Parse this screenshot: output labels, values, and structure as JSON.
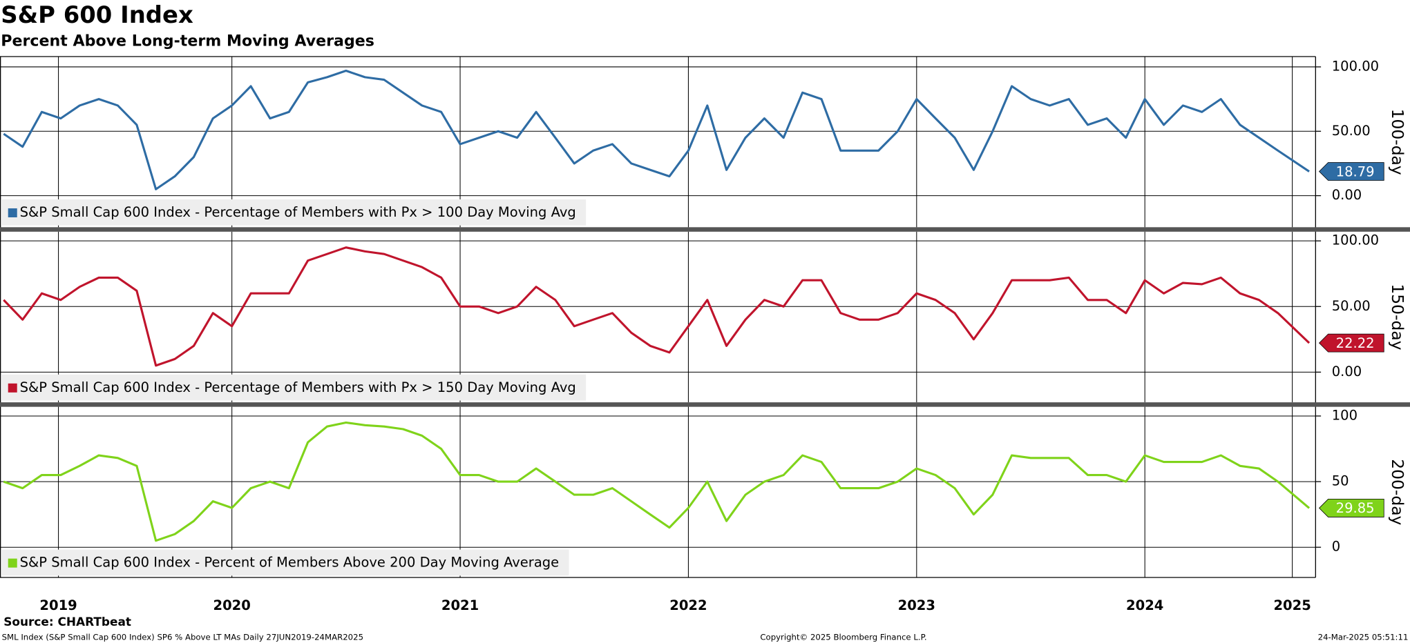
{
  "header": {
    "title": "S&P 600 Index",
    "subtitle": "Percent Above Long-term Moving Averages"
  },
  "chart_data": {
    "type": "line",
    "x": [
      2019.5,
      2019.583,
      2019.667,
      2019.75,
      2019.833,
      2019.917,
      2020,
      2020.083,
      2020.167,
      2020.25,
      2020.333,
      2020.417,
      2020.5,
      2020.583,
      2020.667,
      2020.75,
      2020.833,
      2020.917,
      2021,
      2021.083,
      2021.167,
      2021.25,
      2021.333,
      2021.417,
      2021.5,
      2021.583,
      2021.667,
      2021.75,
      2021.833,
      2021.917,
      2022,
      2022.083,
      2022.167,
      2022.25,
      2022.333,
      2022.417,
      2022.5,
      2022.583,
      2022.667,
      2022.75,
      2022.833,
      2022.917,
      2023,
      2023.083,
      2023.167,
      2023.25,
      2023.333,
      2023.417,
      2023.5,
      2023.583,
      2023.667,
      2023.75,
      2023.833,
      2023.917,
      2024,
      2024.083,
      2024.167,
      2024.25,
      2024.333,
      2024.417,
      2024.5,
      2024.583,
      2024.667,
      2024.75,
      2024.833,
      2024.917,
      2025,
      2025.083,
      2025.22
    ],
    "xlim": [
      2019.484,
      2025.248
    ],
    "xticks": [
      {
        "value": 2019.74,
        "label": "2019"
      },
      {
        "value": 2020.5,
        "label": "2020"
      },
      {
        "value": 2021.5,
        "label": "2021"
      },
      {
        "value": 2022.5,
        "label": "2022"
      },
      {
        "value": 2023.5,
        "label": "2023"
      },
      {
        "value": 2024.5,
        "label": "2024"
      },
      {
        "value": 2025.146,
        "label": "2025"
      }
    ],
    "grid": true,
    "panels": [
      {
        "ylabel": "100-day",
        "ylim": [
          -24.5,
          108
        ],
        "yticks": [
          {
            "value": 100,
            "label": "100.00"
          },
          {
            "value": 50,
            "label": "50.00"
          },
          {
            "value": 0,
            "label": "0.00"
          }
        ],
        "series": [
          {
            "name": "S&P Small Cap 600 Index - Percentage of Members with Px > 100 Day Moving Avg",
            "color": "#2e6ca4",
            "values": [
              48,
              38,
              65,
              60,
              70,
              75,
              70,
              55,
              5,
              15,
              30,
              60,
              70,
              85,
              60,
              65,
              88,
              92,
              97,
              92,
              90,
              80,
              70,
              65,
              40,
              45,
              50,
              45,
              65,
              45,
              25,
              35,
              40,
              25,
              20,
              15,
              35,
              70,
              20,
              45,
              60,
              45,
              80,
              75,
              35,
              35,
              35,
              50,
              75,
              60,
              45,
              20,
              50,
              85,
              75,
              70,
              75,
              55,
              60,
              45,
              75,
              55,
              70,
              65,
              75,
              55,
              45,
              35,
              18.79
            ]
          }
        ]
      },
      {
        "ylabel": "150-day",
        "ylim": [
          -23,
          107
        ],
        "yticks": [
          {
            "value": 100,
            "label": "100.00"
          },
          {
            "value": 50,
            "label": "50.00"
          },
          {
            "value": 0,
            "label": "0.00"
          }
        ],
        "series": [
          {
            "name": "S&P Small Cap 600 Index - Percentage of Members with Px > 150 Day Moving Avg",
            "color": "#c0142c",
            "values": [
              55,
              40,
              60,
              55,
              65,
              72,
              72,
              62,
              5,
              10,
              20,
              45,
              35,
              60,
              60,
              60,
              85,
              90,
              95,
              92,
              90,
              85,
              80,
              72,
              50,
              50,
              45,
              50,
              65,
              55,
              35,
              40,
              45,
              30,
              20,
              15,
              35,
              55,
              20,
              40,
              55,
              50,
              70,
              70,
              45,
              40,
              40,
              45,
              60,
              55,
              45,
              25,
              45,
              70,
              70,
              70,
              72,
              55,
              55,
              45,
              70,
              60,
              68,
              67,
              72,
              60,
              55,
              45,
              22.22
            ]
          }
        ]
      },
      {
        "ylabel": "200-day",
        "ylim": [
          -23,
          107
        ],
        "yticks": [
          100,
          50,
          0
        ],
        "series": [
          {
            "name": "S&P Small Cap 600 Index - Percent of Members Above 200 Day Moving Average",
            "color": "#7fd31a",
            "values": [
              50,
              45,
              55,
              55,
              62,
              70,
              68,
              62,
              5,
              10,
              20,
              35,
              30,
              45,
              50,
              45,
              80,
              92,
              95,
              93,
              92,
              90,
              85,
              75,
              55,
              55,
              50,
              50,
              60,
              50,
              40,
              40,
              45,
              35,
              25,
              15,
              30,
              50,
              20,
              40,
              50,
              55,
              70,
              65,
              45,
              45,
              45,
              50,
              60,
              55,
              45,
              25,
              40,
              70,
              68,
              68,
              68,
              55,
              55,
              50,
              70,
              65,
              65,
              65,
              70,
              62,
              60,
              50,
              29.85
            ]
          }
        ]
      }
    ]
  },
  "footer": {
    "source": "Source: CHARTbeat",
    "left": "SML Index (S&P Small Cap 600 Index) SP6 % Above LT MAs  Daily 27JUN2019-24MAR2025",
    "center": "Copyright© 2025 Bloomberg Finance L.P.",
    "right": "24-Mar-2025 05:51:11"
  }
}
